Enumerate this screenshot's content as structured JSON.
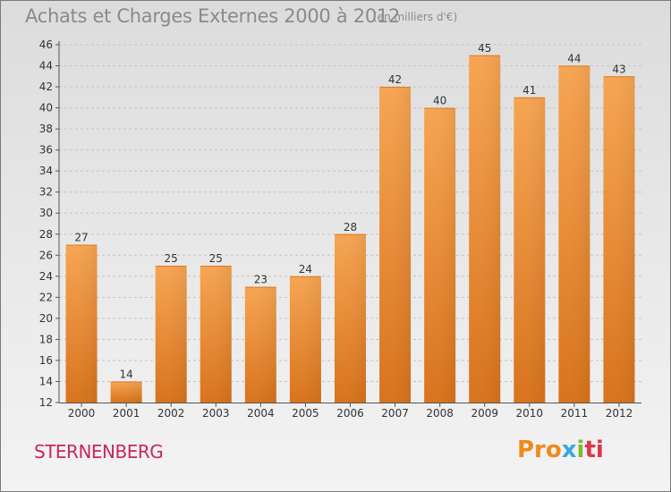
{
  "chart_data": {
    "type": "bar",
    "title": "Achats et Charges Externes 2000 à 2012",
    "subtitle": "(en milliers d'€)",
    "categories": [
      "2000",
      "2001",
      "2002",
      "2003",
      "2004",
      "2005",
      "2006",
      "2007",
      "2008",
      "2009",
      "2010",
      "2011",
      "2012"
    ],
    "values": [
      27,
      14,
      25,
      25,
      23,
      24,
      28,
      42,
      40,
      45,
      41,
      44,
      43
    ],
    "ylim": [
      12,
      46
    ],
    "yticks": [
      12,
      14,
      16,
      18,
      20,
      22,
      24,
      26,
      28,
      30,
      32,
      34,
      36,
      38,
      40,
      42,
      44,
      46
    ],
    "grid": true,
    "bar_color": "#f08c2a"
  },
  "footer": {
    "place": "STERNENBERG",
    "logo": [
      "Pro",
      "x",
      "i",
      "ti"
    ]
  }
}
